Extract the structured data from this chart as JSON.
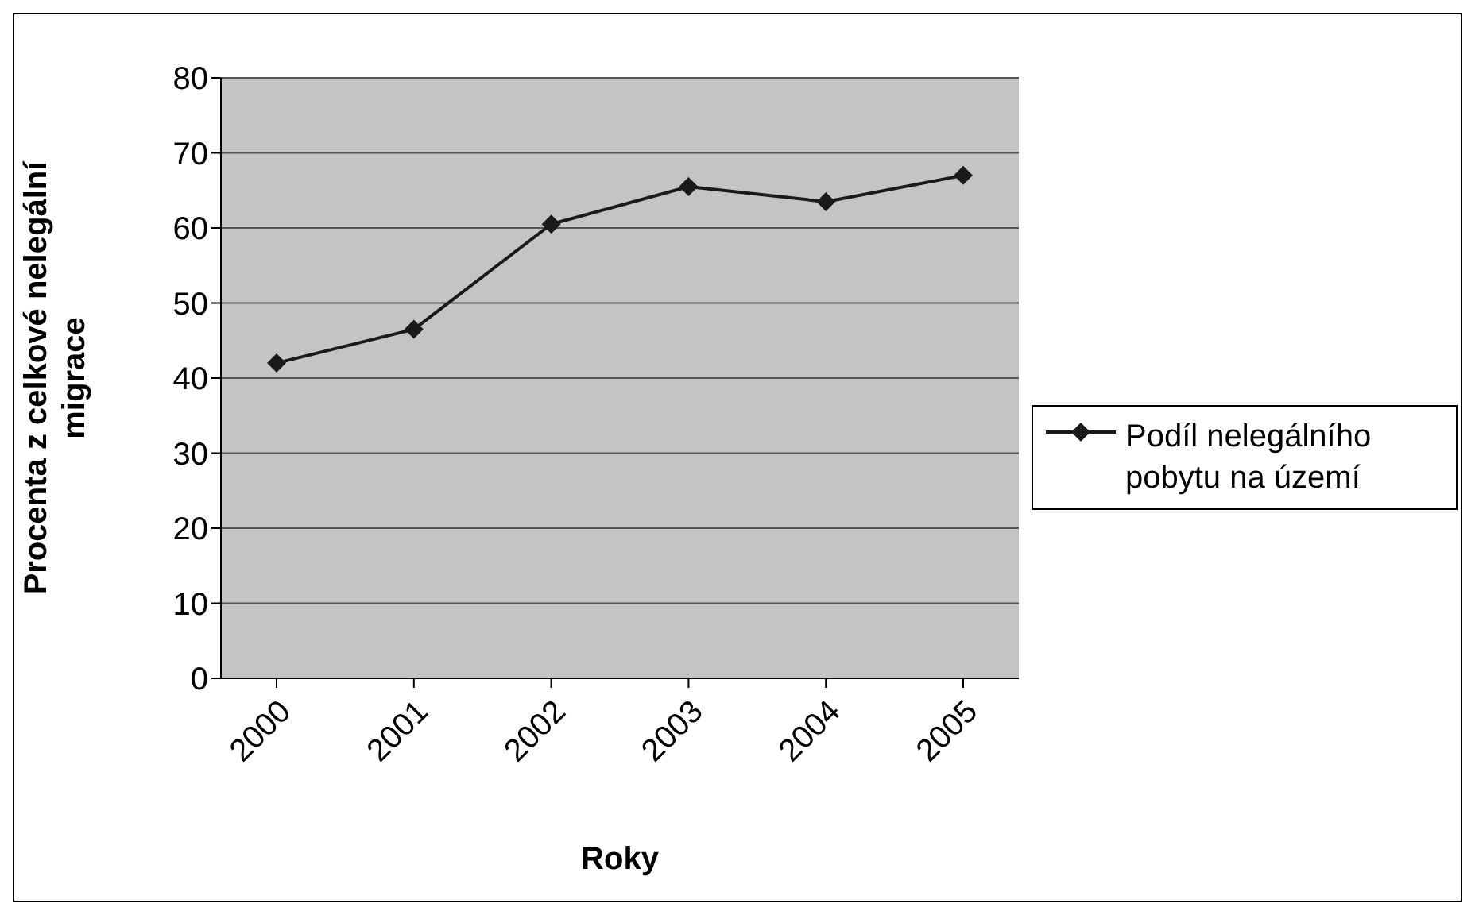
{
  "chart_data": {
    "type": "line",
    "xlabel": "Roky",
    "ylabel": "Procenta z celkové nelegální migrace",
    "categories": [
      "2000",
      "2001",
      "2002",
      "2003",
      "2004",
      "2005"
    ],
    "series": [
      {
        "name": "Podíl nelegálního pobytu na území",
        "color": "#1a1a1a",
        "values": [
          42,
          46.5,
          60.5,
          65.5,
          63.5,
          67
        ]
      }
    ],
    "ylim": [
      0,
      80
    ],
    "yticks": [
      0,
      10,
      20,
      30,
      40,
      50,
      60,
      70,
      80
    ],
    "grid": "y",
    "legend": "right",
    "marker": "diamond",
    "line_style": "solid"
  }
}
